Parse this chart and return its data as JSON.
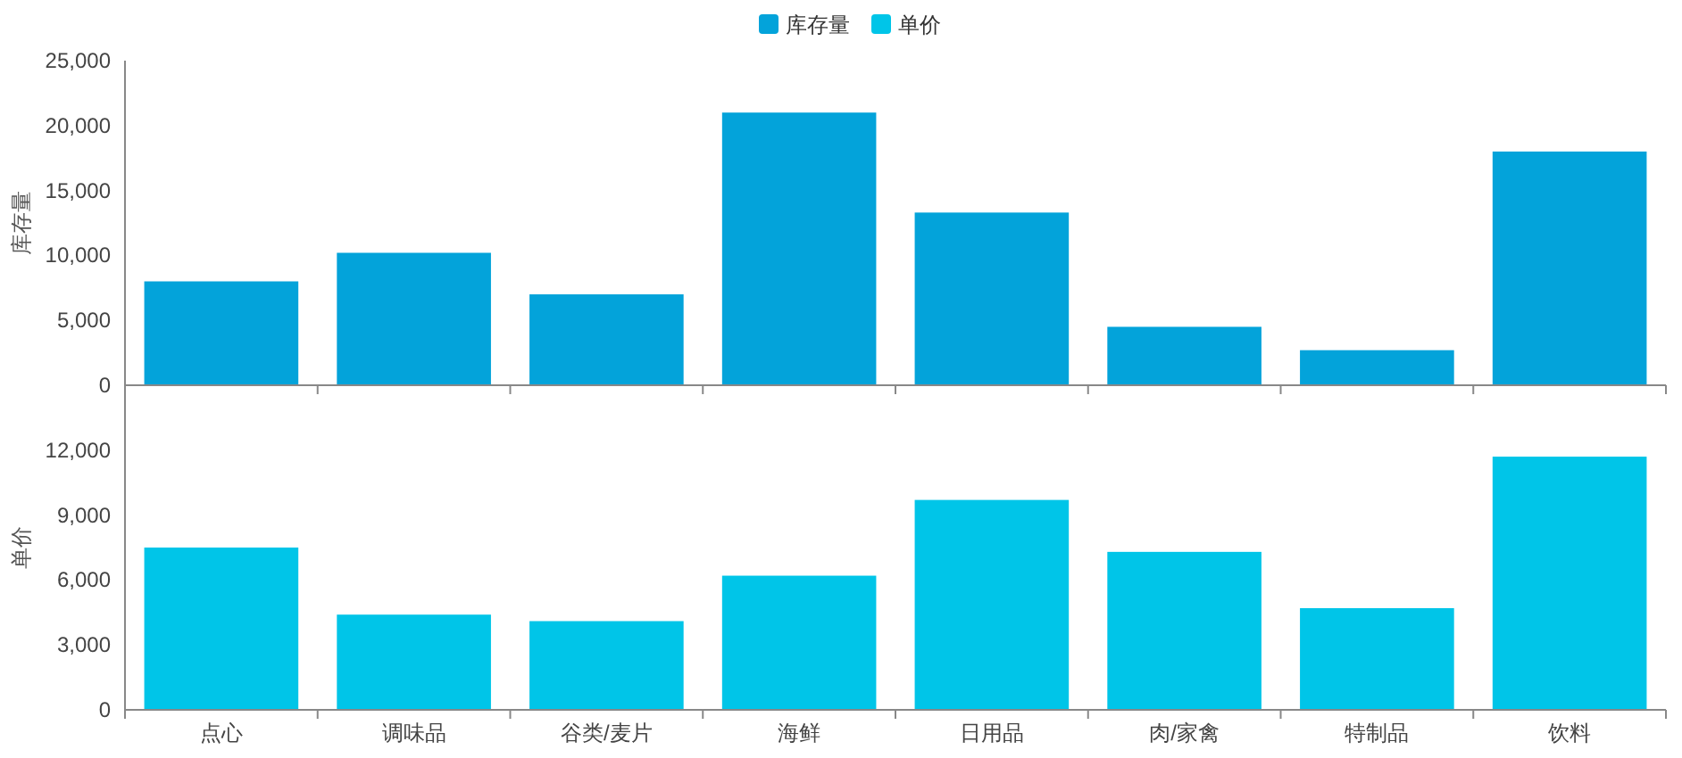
{
  "chart_data": [
    {
      "type": "bar",
      "ylabel": "库存量",
      "categories": [
        null,
        null,
        null,
        null,
        null,
        null,
        null,
        null
      ],
      "series": [
        {
          "name": "库存量",
          "color": "#03a3da",
          "values": [
            8000,
            10200,
            7000,
            21000,
            13300,
            4500,
            2700,
            18000
          ]
        }
      ],
      "ylim": [
        0,
        25000
      ],
      "yticks": [
        {
          "value": 0,
          "label": "0"
        },
        {
          "value": 5000,
          "label": "5,000"
        },
        {
          "value": 10000,
          "label": "10,000"
        },
        {
          "value": 15000,
          "label": "15,000"
        },
        {
          "value": 20000,
          "label": "20,000"
        },
        {
          "value": 25000,
          "label": "25,000"
        }
      ],
      "tick_labels": "y",
      "legend": "top",
      "grid": false
    },
    {
      "type": "bar",
      "ylabel": "单价",
      "categories": [
        "点心",
        "调味品",
        "谷类/麦片",
        "海鲜",
        "日用品",
        "肉/家禽",
        "特制品",
        "饮料"
      ],
      "series": [
        {
          "name": "单价",
          "color": "#00c5e8",
          "values": [
            7500,
            4400,
            4100,
            6200,
            9700,
            7300,
            4700,
            11700
          ]
        }
      ],
      "ylim": [
        0,
        15000
      ],
      "yticks": [
        {
          "value": 0,
          "label": "0"
        },
        {
          "value": 3000,
          "label": "3,000"
        },
        {
          "value": 6000,
          "label": "6,000"
        },
        {
          "value": 9000,
          "label": "9,000"
        },
        {
          "value": 12000,
          "label": "12,000"
        }
      ],
      "legend": "top",
      "grid": false
    }
  ]
}
